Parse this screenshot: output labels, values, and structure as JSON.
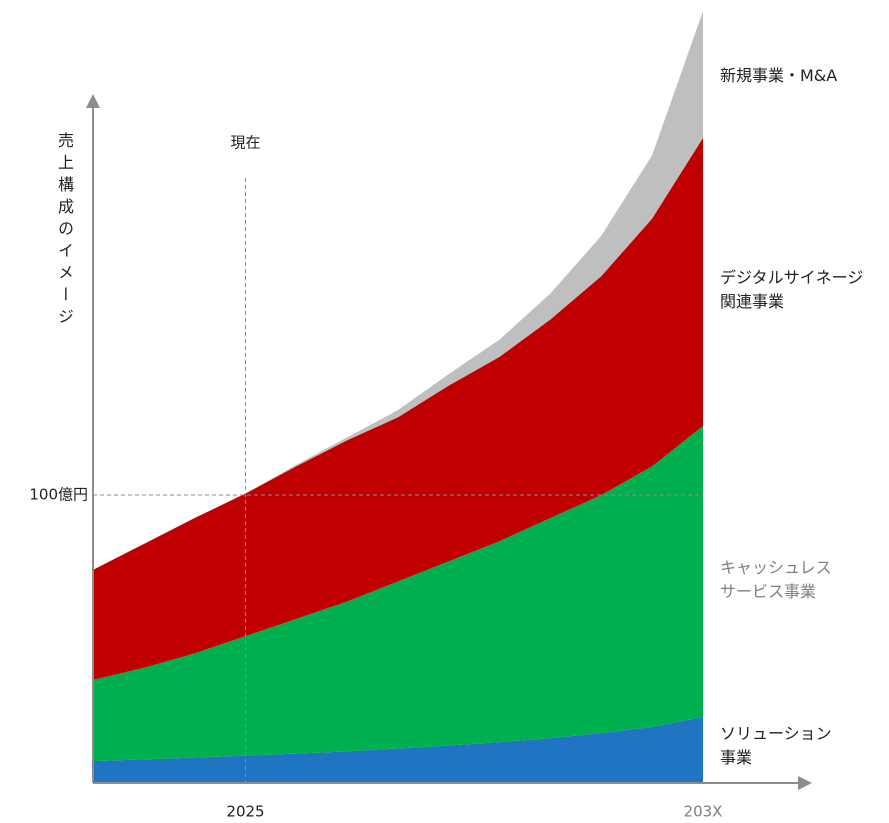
{
  "chart_data": {
    "type": "stacked_area",
    "ylabel": "売上構成のイメージ",
    "annotation": "現在",
    "categories": [
      null,
      null,
      null,
      "2025",
      null,
      null,
      null,
      null,
      null,
      null,
      null,
      null,
      "203X"
    ],
    "ylim": [
      0,
      270
    ],
    "yticks": [
      {
        "value": 100,
        "label": "100億円"
      }
    ],
    "series": [
      {
        "name": "ソリューション\n事業",
        "color": "#1f75c1",
        "values": [
          7.6,
          8.2,
          8.8,
          9.5,
          10.2,
          11,
          12,
          13,
          14.2,
          15.6,
          17.3,
          19.5,
          22.9
        ]
      },
      {
        "name": "キャッシュレス\nサービス事業",
        "color": "#00b050",
        "values": [
          28.2,
          31.8,
          36.2,
          41.5,
          46.8,
          52,
          58,
          64,
          69.8,
          76.4,
          82.7,
          90.5,
          101.1
        ]
      },
      {
        "name": "デジタルサイネージ\n関連事業",
        "color": "#c00000",
        "values": [
          38.2,
          43,
          47,
          49.5,
          53,
          56,
          57,
          61,
          64,
          69,
          76,
          86,
          100
        ]
      },
      {
        "name": "新規事業・M&A",
        "color": "#bfbfbf",
        "values": [
          0,
          0,
          0,
          0,
          0.5,
          1,
          2.5,
          4,
          6,
          9,
          14,
          22,
          44
        ]
      }
    ]
  }
}
